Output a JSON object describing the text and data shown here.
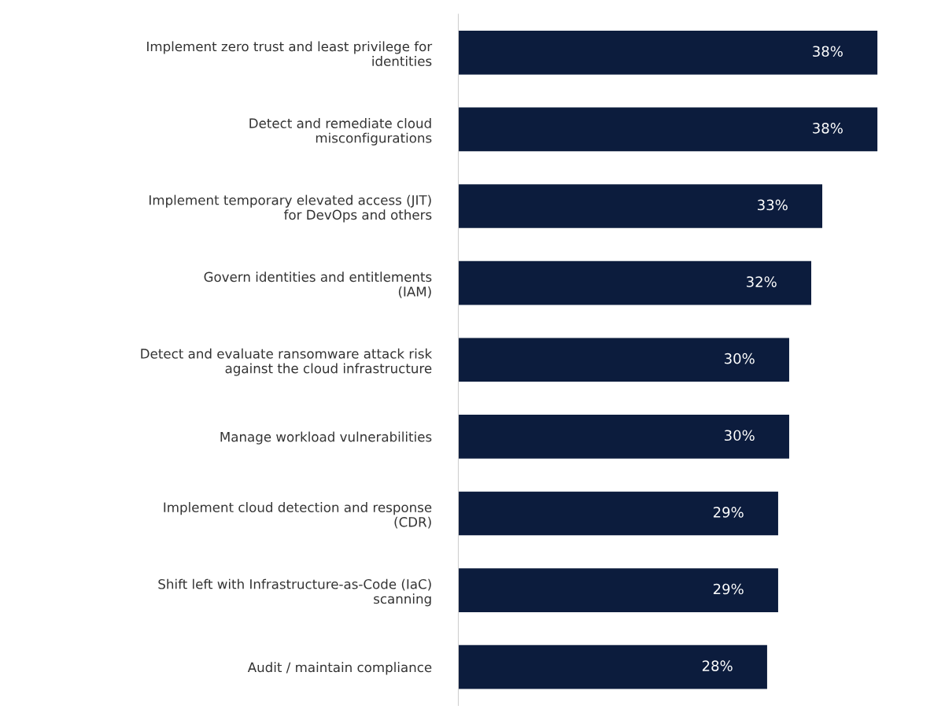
{
  "chart_data": {
    "type": "bar",
    "orientation": "horizontal",
    "categories": [
      "Implement zero trust and least privilege for\nidentities",
      "Detect and remediate cloud\nmisconfigurations",
      "Implement temporary elevated access (JIT)\nfor DevOps and others",
      "Govern identities and entitlements\n(IAM)",
      "Detect and evaluate ransomware attack risk\nagainst the cloud infrastructure",
      "Manage workload vulnerabilities",
      "Implement cloud detection and response\n(CDR)",
      "Shift left with Infrastructure-as-Code (IaC)\nscanning",
      "Audit / maintain compliance"
    ],
    "values": [
      38,
      38,
      33,
      32,
      30,
      30,
      29,
      29,
      28
    ],
    "value_labels": [
      "38%",
      "38%",
      "33%",
      "32%",
      "30%",
      "30%",
      "29%",
      "29%",
      "28%"
    ],
    "color": "#0c1c3d",
    "tick_labels": "y",
    "grid": false,
    "legend": false
  }
}
